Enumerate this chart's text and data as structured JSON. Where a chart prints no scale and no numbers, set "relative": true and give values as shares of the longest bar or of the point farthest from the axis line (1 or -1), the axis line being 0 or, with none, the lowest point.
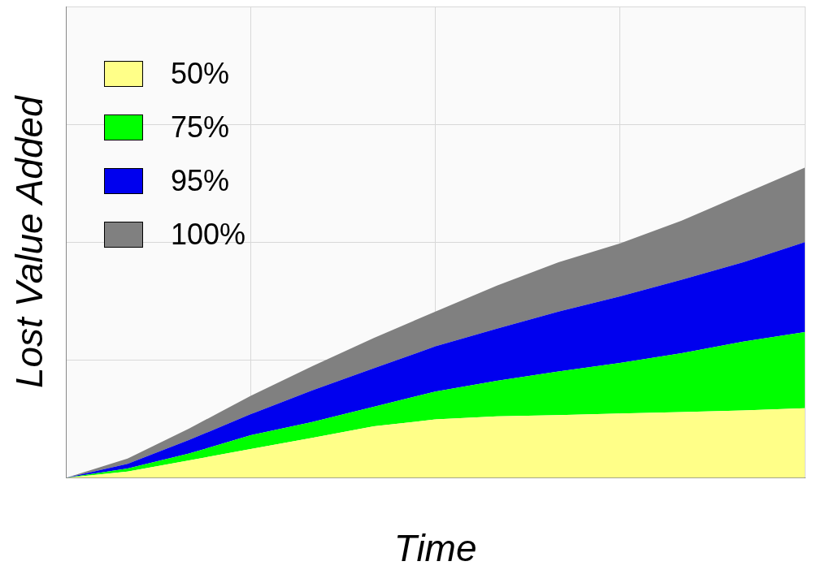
{
  "chart_data": {
    "type": "area",
    "xlabel": "Time",
    "ylabel": "Lost Value Added",
    "relative": true,
    "stacked": true,
    "grid": true,
    "legend": "top left",
    "categories": [
      null,
      null,
      null,
      null,
      null,
      null,
      null,
      null,
      null,
      null,
      null,
      null,
      null
    ],
    "series": [
      {
        "name": "50%",
        "color": "#ffff88",
        "values": [
          0,
          0.02,
          0.056,
          0.093,
          0.129,
          0.166,
          0.188,
          0.198,
          0.202,
          0.207,
          0.212,
          0.217,
          0.224
        ]
      },
      {
        "name": "75%",
        "color": "#00ff00",
        "values": [
          0,
          0.01,
          0.022,
          0.044,
          0.051,
          0.063,
          0.09,
          0.115,
          0.141,
          0.163,
          0.19,
          0.222,
          0.246
        ]
      },
      {
        "name": "95%",
        "color": "#0000ee",
        "values": [
          0,
          0.015,
          0.044,
          0.068,
          0.102,
          0.124,
          0.146,
          0.168,
          0.193,
          0.215,
          0.237,
          0.256,
          0.29
        ]
      },
      {
        "name": "100%",
        "color": "#808080",
        "values": [
          0,
          0.017,
          0.037,
          0.059,
          0.078,
          0.098,
          0.112,
          0.139,
          0.159,
          0.171,
          0.19,
          0.22,
          0.24
        ]
      }
    ]
  }
}
